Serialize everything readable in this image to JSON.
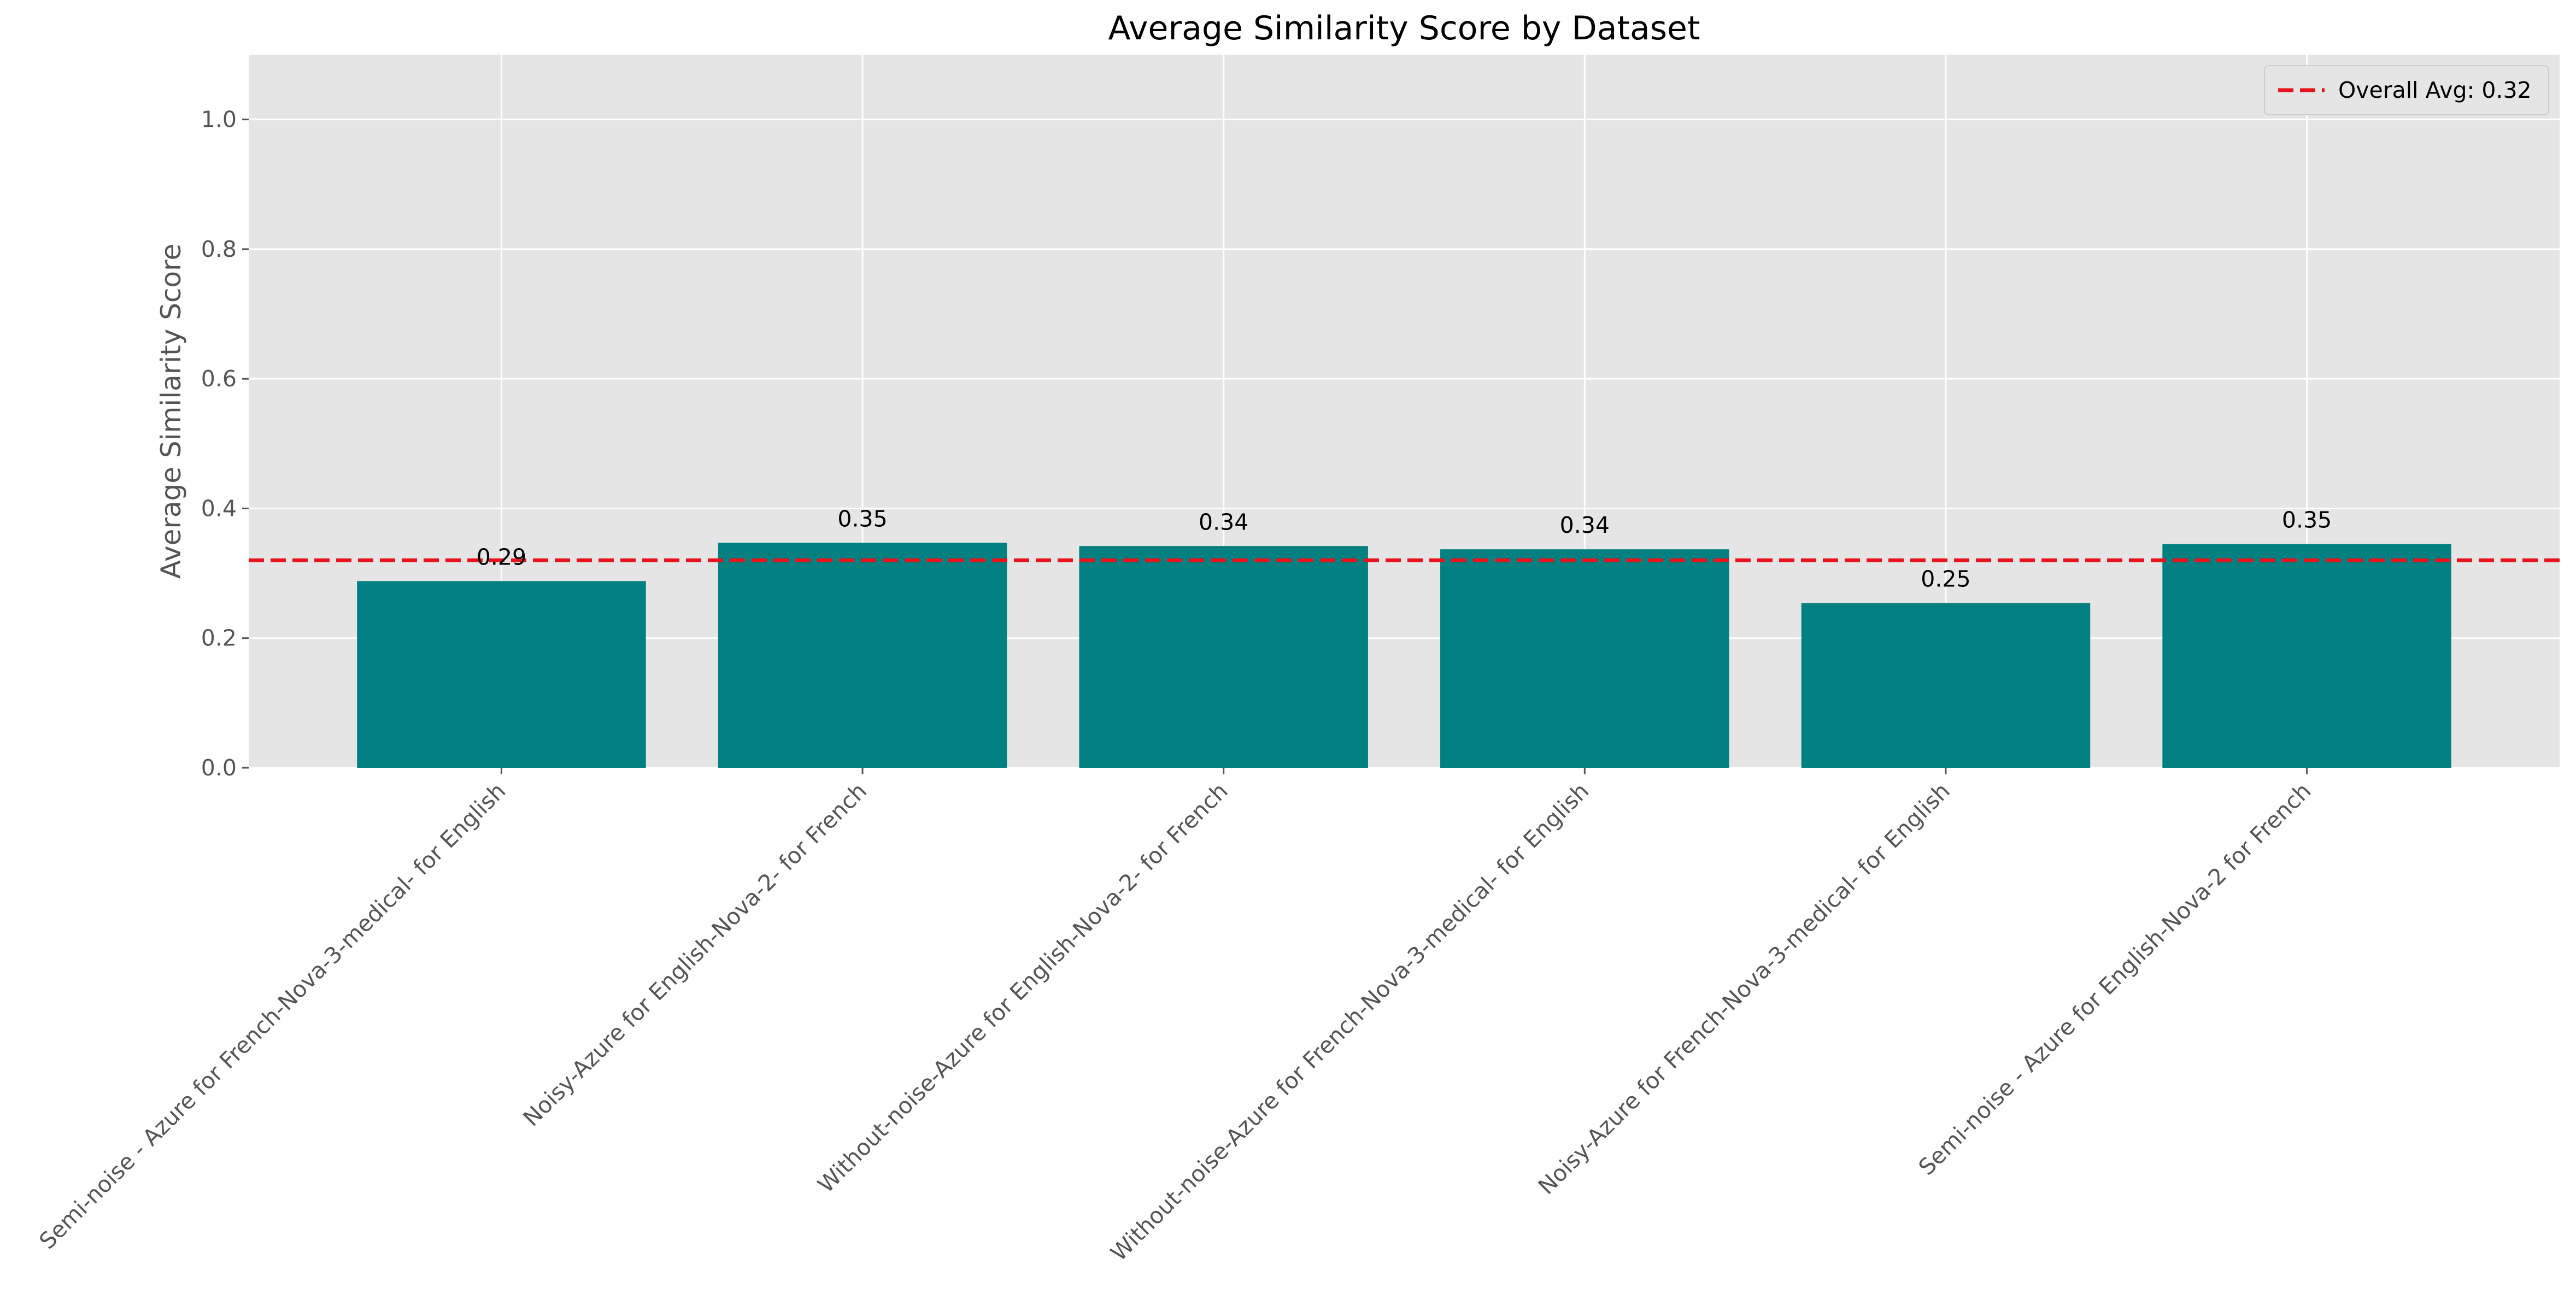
{
  "chart_data": {
    "type": "bar",
    "title": "Average Similarity Score by Dataset",
    "xlabel": "",
    "ylabel": "Average Similarity Score",
    "ylim": [
      0,
      1.1
    ],
    "yticks": [
      0.0,
      0.2,
      0.4,
      0.6,
      0.8,
      1.0
    ],
    "grid": true,
    "categories": [
      "Semi-noise - Azure for French-Nova-3-medical- for English",
      "Noisy-Azure for English-Nova-2- for French",
      "Without-noise-Azure for English-Nova-2- for French",
      "Without-noise-Azure for French-Nova-3-medical- for English",
      "Noisy-Azure for French-Nova-3-medical- for English",
      "Semi-noise - Azure for English-Nova-2 for French"
    ],
    "values": [
      0.288,
      0.347,
      0.342,
      0.337,
      0.254,
      0.345
    ],
    "value_labels": [
      "0.29",
      "0.35",
      "0.34",
      "0.34",
      "0.25",
      "0.35"
    ],
    "bar_color": "#008080",
    "reference_line": {
      "value": 0.32,
      "label": "Overall Avg: 0.32",
      "color": "#e8131d",
      "style": "dashed"
    },
    "legend_position": "top-right",
    "background_color": "#e5e5e5"
  }
}
